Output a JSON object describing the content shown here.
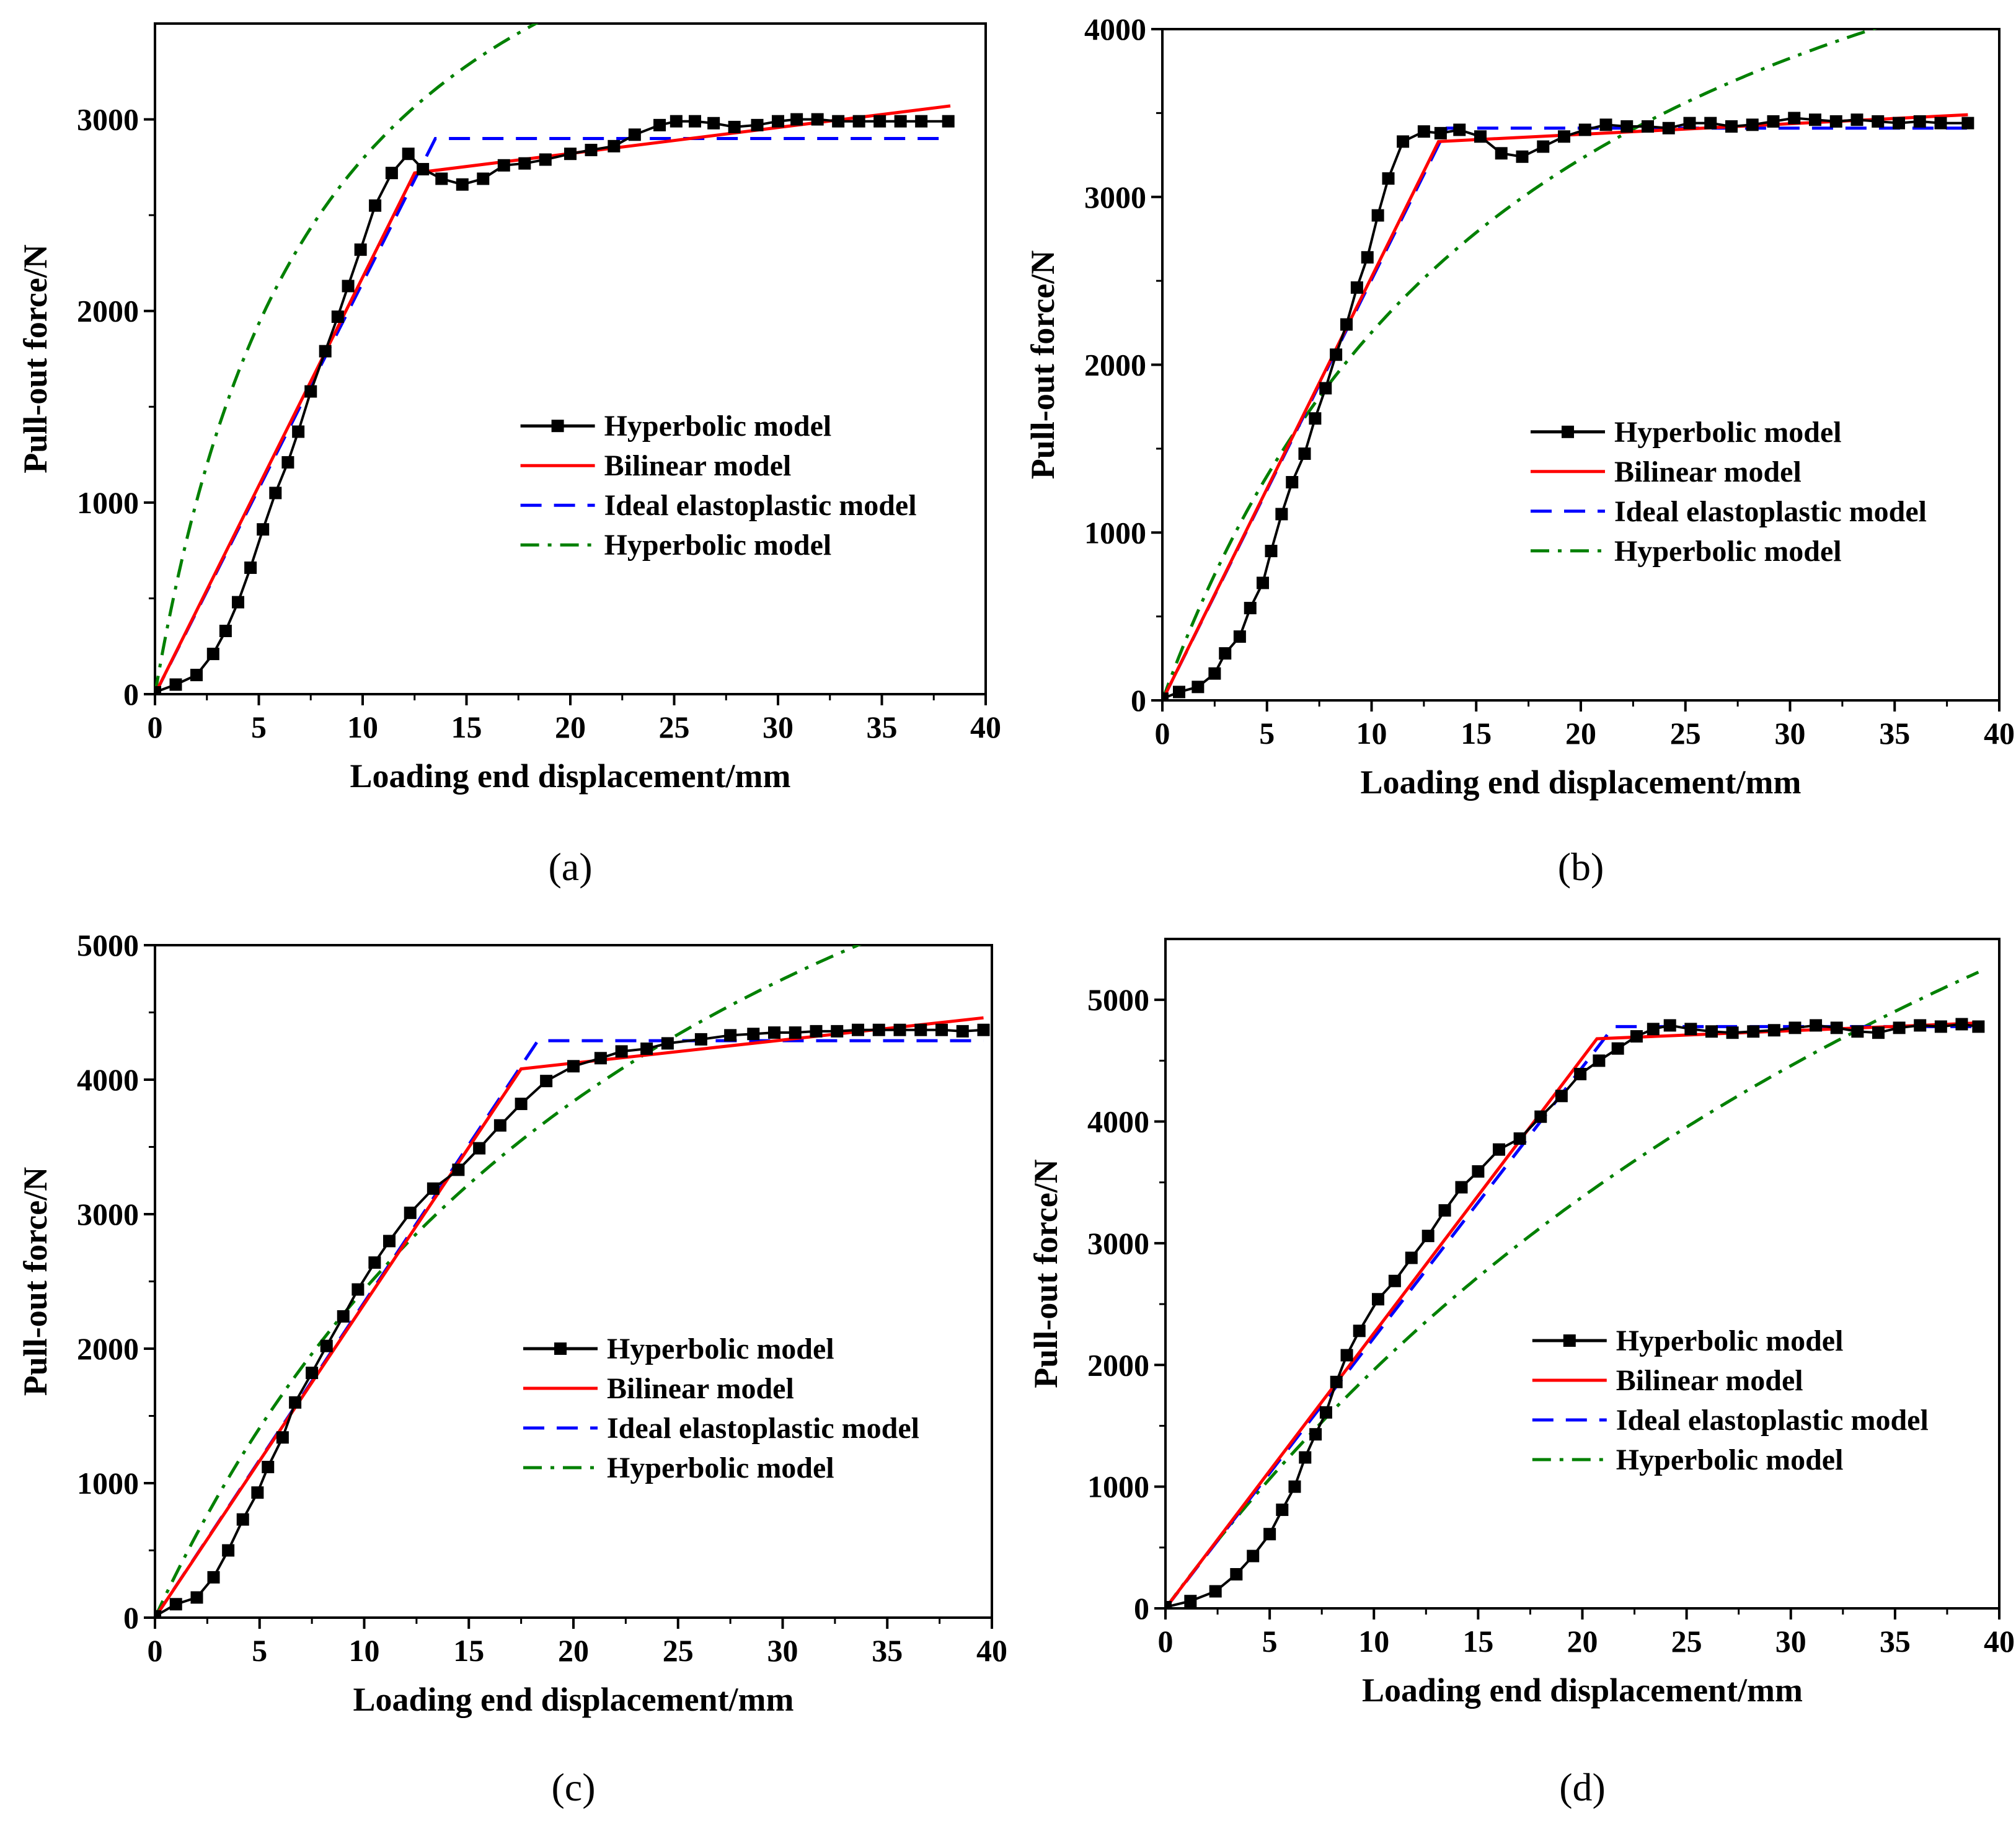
{
  "colors": {
    "experimental": "#000000",
    "bilinear": "#ff0000",
    "ideal": "#0000ff",
    "hyperbolic_fit": "#008000"
  },
  "chart_data": [
    {
      "panel_label": "(a)",
      "type": "line",
      "xlabel": "Loading end displacement/mm",
      "ylabel": "Pull-out force/N",
      "xlim": [
        0,
        40
      ],
      "ylim": [
        0,
        3500
      ],
      "xticks": [
        0,
        5,
        10,
        15,
        20,
        25,
        30,
        35,
        40
      ],
      "yticks": [
        0,
        1000,
        2000,
        3000
      ],
      "legend_position": "lower-right",
      "series": [
        {
          "name": "Hyperbolic model",
          "style": "line-square-markers",
          "color": "#000000",
          "x": [
            0.0,
            1.0,
            2.0,
            2.8,
            3.4,
            4.0,
            4.6,
            5.2,
            5.8,
            6.4,
            6.9,
            7.5,
            8.2,
            8.8,
            9.3,
            9.9,
            10.6,
            11.4,
            12.2,
            12.9,
            13.8,
            14.8,
            15.8,
            16.8,
            17.8,
            18.8,
            20.0,
            21.0,
            22.1,
            23.1,
            24.3,
            25.1,
            26.0,
            26.9,
            27.9,
            29.0,
            30.0,
            30.9,
            31.9,
            32.9,
            33.9,
            34.9,
            35.9,
            36.9,
            38.2
          ],
          "y": [
            10,
            50,
            100,
            210,
            330,
            480,
            660,
            860,
            1050,
            1210,
            1370,
            1580,
            1790,
            1970,
            2130,
            2320,
            2550,
            2720,
            2820,
            2740,
            2690,
            2660,
            2690,
            2760,
            2770,
            2790,
            2820,
            2840,
            2860,
            2920,
            2970,
            2990,
            2990,
            2980,
            2960,
            2970,
            2990,
            3000,
            3000,
            2990,
            2990,
            2990,
            2990,
            2990,
            2990
          ]
        },
        {
          "name": "Bilinear model",
          "style": "solid",
          "color": "#ff0000",
          "x": [
            0,
            12.5,
            38.3
          ],
          "y": [
            0,
            2720,
            3070
          ]
        },
        {
          "name": "Ideal elastoplastic model",
          "style": "dashed",
          "color": "#0000ff",
          "x": [
            0,
            13.5,
            38.3
          ],
          "y": [
            0,
            2900,
            2900
          ]
        },
        {
          "name": "Hyperbolic model",
          "style": "dash-dot",
          "color": "#008000",
          "fit": {
            "a": 0.00159,
            "b": 0.000199
          },
          "x_end": 38.3
        }
      ]
    },
    {
      "panel_label": "(b)",
      "type": "line",
      "xlabel": "Loading end displacement/mm",
      "ylabel": "Pull-out force/N",
      "xlim": [
        0,
        40
      ],
      "ylim": [
        0,
        4000
      ],
      "xticks": [
        0,
        5,
        10,
        15,
        20,
        25,
        30,
        35,
        40
      ],
      "yticks": [
        0,
        1000,
        2000,
        3000,
        4000
      ],
      "legend_position": "lower-right",
      "series": [
        {
          "name": "Hyperbolic model",
          "style": "line-square-markers",
          "color": "#000000",
          "x": [
            0.0,
            0.8,
            1.7,
            2.5,
            3.0,
            3.7,
            4.2,
            4.8,
            5.2,
            5.7,
            6.2,
            6.8,
            7.3,
            7.8,
            8.3,
            8.8,
            9.3,
            9.8,
            10.3,
            10.8,
            11.5,
            12.5,
            13.3,
            14.2,
            15.2,
            16.2,
            17.2,
            18.2,
            19.2,
            20.2,
            21.2,
            22.2,
            23.2,
            24.2,
            25.2,
            26.2,
            27.2,
            28.2,
            29.2,
            30.2,
            31.2,
            32.2,
            33.2,
            34.2,
            35.2,
            36.2,
            37.2,
            38.5
          ],
          "y": [
            10,
            50,
            80,
            160,
            280,
            380,
            550,
            700,
            890,
            1110,
            1300,
            1470,
            1680,
            1860,
            2060,
            2240,
            2460,
            2640,
            2890,
            3110,
            3330,
            3390,
            3380,
            3400,
            3360,
            3260,
            3240,
            3300,
            3360,
            3400,
            3430,
            3420,
            3420,
            3410,
            3440,
            3440,
            3420,
            3430,
            3450,
            3470,
            3460,
            3450,
            3460,
            3450,
            3440,
            3450,
            3440,
            3440
          ]
        },
        {
          "name": "Bilinear model",
          "style": "solid",
          "color": "#ff0000",
          "x": [
            0,
            13.2,
            38.5
          ],
          "y": [
            0,
            3330,
            3490
          ]
        },
        {
          "name": "Ideal elastoplastic model",
          "style": "dashed",
          "color": "#0000ff",
          "x": [
            0,
            13.6,
            38.5
          ],
          "y": [
            0,
            3410,
            3410
          ]
        },
        {
          "name": "Hyperbolic model",
          "style": "dash-dot",
          "color": "#008000",
          "fit": {
            "a": 0.00292,
            "b": 0.000164
          },
          "x_end": 38.5
        }
      ]
    },
    {
      "panel_label": "(c)",
      "type": "line",
      "xlabel": "Loading end displacement/mm",
      "ylabel": "Pull-out force/N",
      "xlim": [
        0,
        40
      ],
      "ylim": [
        0,
        5000
      ],
      "xticks": [
        0,
        5,
        10,
        15,
        20,
        25,
        30,
        35,
        40
      ],
      "yticks": [
        0,
        1000,
        2000,
        3000,
        4000,
        5000
      ],
      "legend_position": "lower-right",
      "series": [
        {
          "name": "Hyperbolic model",
          "style": "line-square-markers",
          "color": "#000000",
          "x": [
            0.0,
            1.0,
            2.0,
            2.8,
            3.5,
            4.2,
            4.9,
            5.4,
            6.1,
            6.7,
            7.5,
            8.2,
            9.0,
            9.7,
            10.5,
            11.2,
            12.2,
            13.3,
            14.5,
            15.5,
            16.5,
            17.5,
            18.7,
            20.0,
            21.3,
            22.3,
            23.5,
            24.5,
            26.1,
            27.5,
            28.6,
            29.6,
            30.6,
            31.6,
            32.6,
            33.6,
            34.6,
            35.6,
            36.6,
            37.6,
            38.6,
            39.6
          ],
          "y": [
            10,
            100,
            150,
            300,
            500,
            730,
            930,
            1120,
            1340,
            1600,
            1820,
            2020,
            2240,
            2440,
            2640,
            2800,
            3010,
            3190,
            3330,
            3490,
            3660,
            3820,
            3990,
            4100,
            4160,
            4210,
            4230,
            4270,
            4300,
            4330,
            4340,
            4350,
            4350,
            4360,
            4360,
            4370,
            4370,
            4370,
            4370,
            4370,
            4360,
            4370
          ]
        },
        {
          "name": "Bilinear model",
          "style": "solid",
          "color": "#ff0000",
          "x": [
            0,
            17.5,
            39.6
          ],
          "y": [
            0,
            4080,
            4460
          ]
        },
        {
          "name": "Ideal elastoplastic model",
          "style": "dashed",
          "color": "#0000ff",
          "x": [
            0,
            18.3,
            39.6
          ],
          "y": [
            0,
            4290,
            4290
          ]
        },
        {
          "name": "Hyperbolic model",
          "style": "dash-dot",
          "color": "#008000",
          "fit": {
            "a": 0.00299,
            "b": 0.000111
          },
          "x_end": 39.6
        }
      ]
    },
    {
      "panel_label": "(d)",
      "type": "line",
      "xlabel": "Loading end displacement/mm",
      "ylabel": "Pull-out force/N",
      "xlim": [
        0,
        40
      ],
      "ylim": [
        0,
        5500
      ],
      "xticks": [
        0,
        5,
        10,
        15,
        20,
        25,
        30,
        35,
        40
      ],
      "yticks": [
        0,
        1000,
        2000,
        3000,
        4000,
        5000
      ],
      "legend_position": "lower-right",
      "series": [
        {
          "name": "Hyperbolic model",
          "style": "line-square-markers",
          "color": "#000000",
          "x": [
            0.0,
            1.2,
            2.4,
            3.4,
            4.2,
            5.0,
            5.6,
            6.2,
            6.7,
            7.2,
            7.7,
            8.2,
            8.7,
            9.3,
            10.2,
            11.0,
            11.8,
            12.6,
            13.4,
            14.2,
            15.0,
            16.0,
            17.0,
            18.0,
            19.0,
            19.9,
            20.8,
            21.7,
            22.6,
            23.4,
            24.2,
            25.2,
            26.2,
            27.2,
            28.2,
            29.2,
            30.2,
            31.2,
            32.2,
            33.2,
            34.2,
            35.2,
            36.2,
            37.2,
            38.2,
            39.0
          ],
          "y": [
            10,
            60,
            140,
            280,
            430,
            610,
            810,
            1000,
            1240,
            1430,
            1610,
            1860,
            2080,
            2280,
            2540,
            2690,
            2880,
            3060,
            3270,
            3460,
            3590,
            3770,
            3860,
            4040,
            4210,
            4390,
            4500,
            4600,
            4700,
            4760,
            4790,
            4760,
            4740,
            4730,
            4740,
            4750,
            4770,
            4790,
            4770,
            4740,
            4730,
            4770,
            4790,
            4780,
            4800,
            4780
          ]
        },
        {
          "name": "Bilinear model",
          "style": "solid",
          "color": "#ff0000",
          "x": [
            0,
            20.7,
            39.0
          ],
          "y": [
            0,
            4680,
            4810
          ]
        },
        {
          "name": "Ideal elastoplastic model",
          "style": "dashed",
          "color": "#0000ff",
          "x": [
            0,
            21.5,
            39.0
          ],
          "y": [
            0,
            4780,
            4780
          ]
        },
        {
          "name": "Hyperbolic model",
          "style": "dash-dot",
          "color": "#008000",
          "fit": {
            "a": 0.00429,
            "b": 8.13e-05
          },
          "x_end": 39.0
        }
      ]
    }
  ]
}
